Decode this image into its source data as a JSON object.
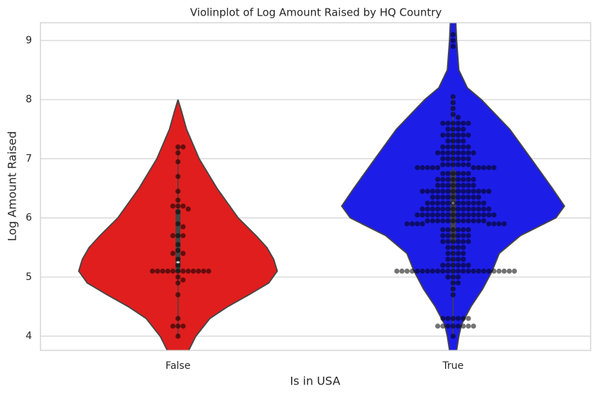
{
  "chart_data": {
    "type": "violin",
    "title": "Violinplot of Log Amount Raised by HQ Country",
    "xlabel": "Is in USA",
    "ylabel": "Log Amount Raised",
    "categories": [
      "False",
      "True"
    ],
    "ylim": [
      3.76,
      9.3
    ],
    "yticks": [
      4,
      5,
      6,
      7,
      8,
      9
    ],
    "grid": true,
    "edge_color": "#444444",
    "point_color": "#000000",
    "violins": [
      {
        "color": "#e01e1e",
        "density_y": [
          8.0,
          7.8,
          7.5,
          7.0,
          6.5,
          6.0,
          5.7,
          5.5,
          5.3,
          5.1,
          4.9,
          4.7,
          4.5,
          4.3,
          4.0,
          3.76
        ],
        "density_width": [
          0,
          0.013,
          0.031,
          0.077,
          0.142,
          0.219,
          0.284,
          0.323,
          0.348,
          0.361,
          0.33,
          0.258,
          0.181,
          0.116,
          0.065,
          0.039
        ],
        "whisker": [
          4.0,
          7.2
        ],
        "q1": 5.08,
        "median": 5.25,
        "q3": 6.15,
        "points": [
          7.2,
          7.2,
          7.1,
          6.95,
          6.7,
          6.45,
          6.3,
          6.2,
          6.2,
          6.2,
          6.15,
          6.1,
          5.9,
          5.85,
          5.7,
          5.7,
          5.7,
          5.55,
          5.45,
          5.4,
          5.4,
          5.3,
          5.2,
          5.1,
          5.1,
          5.1,
          5.1,
          5.1,
          5.1,
          5.1,
          5.1,
          5.1,
          5.1,
          5.1,
          5.1,
          5.0,
          4.95,
          4.9,
          4.7,
          4.3,
          4.17,
          4.17,
          4.17,
          4.0
        ]
      },
      {
        "color": "#1d1de8",
        "density_y": [
          9.3,
          9.0,
          8.5,
          8.2,
          8.0,
          7.5,
          7.0,
          6.5,
          6.2,
          6.0,
          5.7,
          5.4,
          5.1,
          4.8,
          4.5,
          4.2,
          4.0,
          3.76
        ],
        "density_width": [
          0.01,
          0.013,
          0.021,
          0.052,
          0.103,
          0.206,
          0.284,
          0.361,
          0.405,
          0.374,
          0.245,
          0.168,
          0.142,
          0.108,
          0.065,
          0.031,
          0.021,
          0.013
        ],
        "whisker": [
          4.0,
          8.05
        ],
        "q1": 5.6,
        "median": 6.25,
        "q3": 6.8,
        "points": [
          9.1,
          9.0,
          8.9,
          8.05,
          7.95,
          7.85,
          7.75,
          7.7,
          7.6,
          7.6,
          7.6,
          7.6,
          7.6,
          7.6,
          7.5,
          7.5,
          7.5,
          7.5,
          7.4,
          7.4,
          7.4,
          7.4,
          7.4,
          7.4,
          7.3,
          7.3,
          7.3,
          7.3,
          7.2,
          7.2,
          7.2,
          7.2,
          7.2,
          7.2,
          7.1,
          7.1,
          7.1,
          7.1,
          7.1,
          7.1,
          7.1,
          7.1,
          7.0,
          7.0,
          7.0,
          7.0,
          7.0,
          7.0,
          6.9,
          6.9,
          6.9,
          6.9,
          6.9,
          6.9,
          6.85,
          6.85,
          6.85,
          6.85,
          6.85,
          6.85,
          6.85,
          6.85,
          6.85,
          6.85,
          6.75,
          6.75,
          6.75,
          6.75,
          6.75,
          6.75,
          6.65,
          6.65,
          6.65,
          6.65,
          6.65,
          6.65,
          6.65,
          6.65,
          6.55,
          6.55,
          6.55,
          6.55,
          6.55,
          6.55,
          6.55,
          6.55,
          6.45,
          6.45,
          6.45,
          6.45,
          6.45,
          6.45,
          6.45,
          6.45,
          6.45,
          6.45,
          6.45,
          6.45,
          6.45,
          6.45,
          6.35,
          6.35,
          6.35,
          6.35,
          6.35,
          6.35,
          6.35,
          6.35,
          6.35,
          6.35,
          6.25,
          6.25,
          6.25,
          6.25,
          6.25,
          6.25,
          6.25,
          6.25,
          6.25,
          6.25,
          6.25,
          6.25,
          6.15,
          6.15,
          6.15,
          6.15,
          6.15,
          6.15,
          6.15,
          6.15,
          6.15,
          6.15,
          6.15,
          6.15,
          6.15,
          6.15,
          6.05,
          6.05,
          6.05,
          6.05,
          6.05,
          6.05,
          6.05,
          6.05,
          6.05,
          6.05,
          6.05,
          6.05,
          6.05,
          6.05,
          6.05,
          6.05,
          5.95,
          5.95,
          5.95,
          5.95,
          5.95,
          5.95,
          5.95,
          5.95,
          5.95,
          5.95,
          5.95,
          5.95,
          5.9,
          5.9,
          5.9,
          5.9,
          5.9,
          5.9,
          5.9,
          5.9,
          5.8,
          5.8,
          5.8,
          5.8,
          5.8,
          5.8,
          5.7,
          5.7,
          5.7,
          5.7,
          5.7,
          5.7,
          5.6,
          5.6,
          5.6,
          5.6,
          5.6,
          5.6,
          5.5,
          5.5,
          5.5,
          5.5,
          5.4,
          5.4,
          5.4,
          5.4,
          5.3,
          5.3,
          5.3,
          5.3,
          5.2,
          5.2,
          5.2,
          5.2,
          5.2,
          5.2,
          5.1,
          5.1,
          5.1,
          5.1,
          5.1,
          5.1,
          5.1,
          5.1,
          5.1,
          5.1,
          5.1,
          5.1,
          5.1,
          5.1,
          5.1,
          5.1,
          5.1,
          5.1,
          5.1,
          5.1,
          5.1,
          5.1,
          5.1,
          5.1,
          5.0,
          5.0,
          5.0,
          4.9,
          4.9,
          4.8,
          4.7,
          4.3,
          4.3,
          4.3,
          4.3,
          4.3,
          4.3,
          4.17,
          4.17,
          4.17,
          4.17,
          4.17,
          4.17,
          4.17,
          4.17,
          4.0
        ]
      }
    ]
  }
}
